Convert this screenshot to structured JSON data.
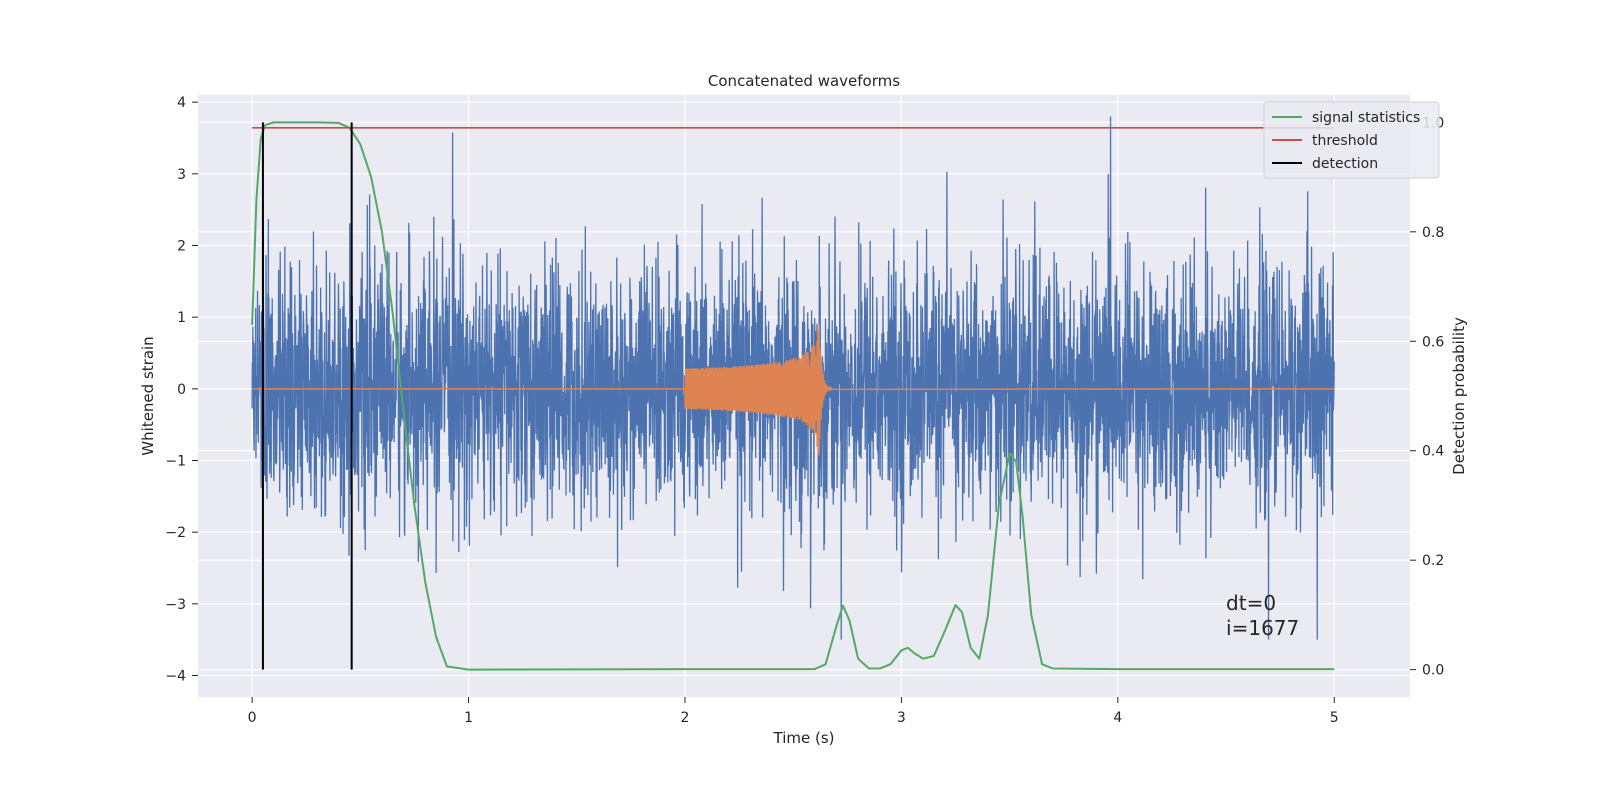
{
  "chart_data": {
    "type": "line",
    "title": "Concatenated waveforms",
    "xlabel": "Time (s)",
    "ylabel": "Whitened strain",
    "y2label": "Detection probability",
    "xlim": [
      -0.25,
      5.35
    ],
    "ylim": [
      -4.3,
      4.1
    ],
    "y2lim": [
      -0.05,
      1.05
    ],
    "xticks": [
      "0",
      "1",
      "2",
      "3",
      "4",
      "5"
    ],
    "yticks": [
      "4",
      "3",
      "2",
      "1",
      "0",
      "−1",
      "−2",
      "−3",
      "−4"
    ],
    "y2ticks": [
      "1.0",
      "0.8",
      "0.6",
      "0.4",
      "0.2",
      "0.0"
    ],
    "grid": true,
    "legend_position": "top-right",
    "legend": [
      "signal statistics",
      "threshold",
      "detection"
    ],
    "annotations": [
      "dt=0",
      "i=1677"
    ],
    "colors": {
      "strain": "#4c72b0",
      "template": "#dd8452",
      "statistics": "#55a868",
      "threshold": "#c44e52",
      "detection": "#000000",
      "background": "#eaeaf2",
      "grid": "#ffffff"
    },
    "series": [
      {
        "name": "Whitened strain",
        "axis": "left",
        "description": "noisy strain samples from 0 to 5 s, roughly between -3.5 and 3.8",
        "x_range": [
          0,
          5
        ]
      },
      {
        "name": "Injected waveform",
        "axis": "left",
        "description": "chirp from 2.0 s to 2.62 s, amplitude growing to about 0.95 at merger",
        "x_range": [
          2.0,
          2.62
        ]
      },
      {
        "name": "signal statistics",
        "axis": "right",
        "x": [
          0,
          0.02,
          0.04,
          0.06,
          0.1,
          0.2,
          0.3,
          0.4,
          0.45,
          0.5,
          0.55,
          0.6,
          0.65,
          0.7,
          0.75,
          0.8,
          0.85,
          0.9,
          1.0,
          2.0,
          2.6,
          2.65,
          2.7,
          2.73,
          2.76,
          2.8,
          2.85,
          2.9,
          2.95,
          3.0,
          3.03,
          3.06,
          3.1,
          3.15,
          3.2,
          3.25,
          3.28,
          3.32,
          3.36,
          3.4,
          3.45,
          3.5,
          3.53,
          3.56,
          3.6,
          3.65,
          3.7,
          4.0,
          5.0
        ],
        "y": [
          0.63,
          0.86,
          0.97,
          0.995,
          1.0,
          1.0,
          1.0,
          0.999,
          0.99,
          0.96,
          0.9,
          0.8,
          0.65,
          0.47,
          0.3,
          0.16,
          0.06,
          0.006,
          0.0,
          0.001,
          0.001,
          0.01,
          0.08,
          0.117,
          0.09,
          0.02,
          0.002,
          0.002,
          0.01,
          0.035,
          0.04,
          0.03,
          0.02,
          0.025,
          0.07,
          0.118,
          0.105,
          0.04,
          0.02,
          0.1,
          0.3,
          0.395,
          0.38,
          0.28,
          0.1,
          0.01,
          0.002,
          0.001,
          0.001
        ]
      },
      {
        "name": "threshold",
        "axis": "right",
        "x": [
          0,
          5
        ],
        "y": [
          0.99,
          0.99
        ]
      },
      {
        "name": "detection",
        "axis": "right",
        "x": [
          0.05,
          0.46
        ],
        "y_range": [
          0.0,
          1.0
        ]
      }
    ]
  }
}
